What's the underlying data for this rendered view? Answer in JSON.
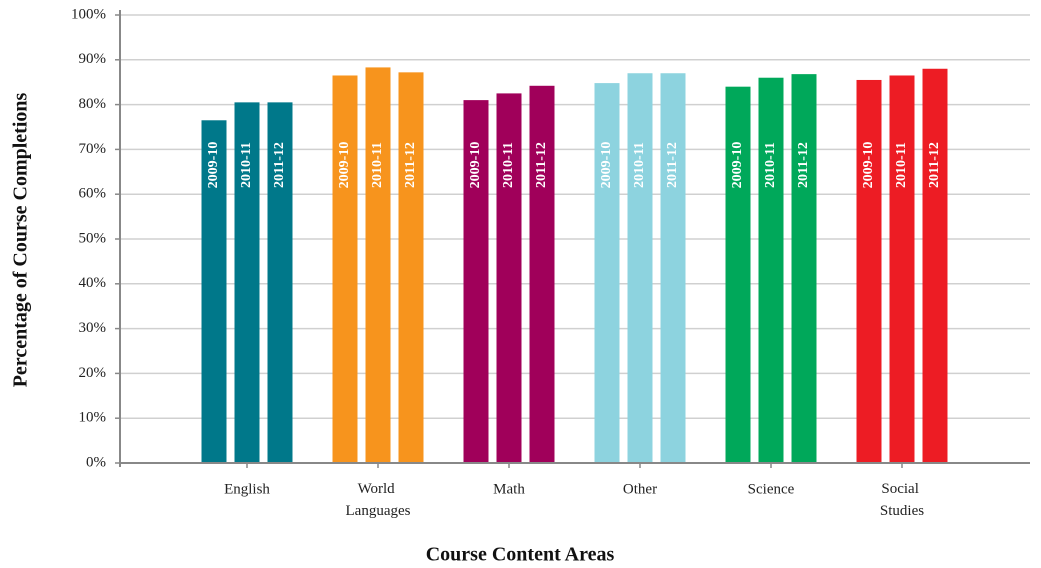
{
  "chart_data": {
    "type": "bar",
    "x_label": "Course Content Areas",
    "y_label": "Percentage of Course Completions",
    "categories": [
      "English",
      "World Languages",
      "Math",
      "Other",
      "Science",
      "Social Studies"
    ],
    "category_colors": [
      "#00788a",
      "#f7941d",
      "#a0005a",
      "#8dd3df",
      "#00a85a",
      "#ed1c24"
    ],
    "series": [
      {
        "name": "2009-10",
        "values": [
          76.5,
          86.5,
          81,
          84.8,
          84,
          85.5
        ]
      },
      {
        "name": "2010-11",
        "values": [
          80.5,
          88.3,
          82.5,
          87,
          86,
          86.5
        ]
      },
      {
        "name": "2011-12",
        "values": [
          80.5,
          87.2,
          84.2,
          87,
          86.8,
          88
        ]
      }
    ],
    "ylim": [
      0,
      100
    ],
    "yticks": [
      {
        "value": 0,
        "label": "0%"
      },
      {
        "value": 10,
        "label": "10%"
      },
      {
        "value": 20,
        "label": "20%"
      },
      {
        "value": 30,
        "label": "30%"
      },
      {
        "value": 40,
        "label": "40%"
      },
      {
        "value": 50,
        "label": "50%"
      },
      {
        "value": 60,
        "label": "60%"
      },
      {
        "value": 70,
        "label": "70%"
      },
      {
        "value": 80,
        "label": "80%"
      },
      {
        "value": 90,
        "label": "90%"
      },
      {
        "value": 100,
        "label": "100%"
      }
    ],
    "grid": true
  }
}
